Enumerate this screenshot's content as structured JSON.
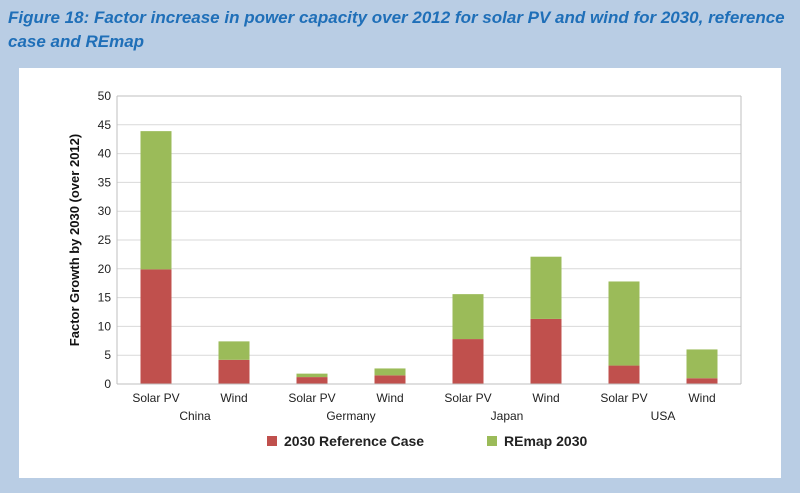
{
  "page": {
    "title": "Figure 18: Factor increase in power capacity over 2012 for solar PV and wind for 2030, reference case and REmap"
  },
  "chart_data": {
    "type": "bar",
    "stacked": true,
    "categories": [
      "Solar PV",
      "Wind",
      "Solar PV",
      "Wind",
      "Solar PV",
      "Wind",
      "Solar PV",
      "Wind"
    ],
    "groups": [
      {
        "label": "China",
        "span": [
          0,
          1
        ]
      },
      {
        "label": "Germany",
        "span": [
          2,
          3
        ]
      },
      {
        "label": "Japan",
        "span": [
          4,
          5
        ]
      },
      {
        "label": "USA",
        "span": [
          6,
          7
        ]
      }
    ],
    "series": [
      {
        "name": "2030 Reference Case",
        "color": "#c0504d",
        "values": [
          19.9,
          4.2,
          1.2,
          1.5,
          7.8,
          11.3,
          3.2,
          1.0
        ]
      },
      {
        "name": "REmap 2030",
        "color": "#9bbb59",
        "values": [
          24.0,
          3.2,
          0.6,
          1.2,
          7.8,
          10.8,
          14.6,
          5.0
        ]
      }
    ],
    "ylabel": "Factor Growth by 2030 (over 2012)",
    "xlabel": "",
    "ylim": [
      0,
      50
    ],
    "yticks": [
      0,
      5,
      10,
      15,
      20,
      25,
      30,
      35,
      40,
      45,
      50
    ],
    "grid": true,
    "legend": "bottom"
  }
}
